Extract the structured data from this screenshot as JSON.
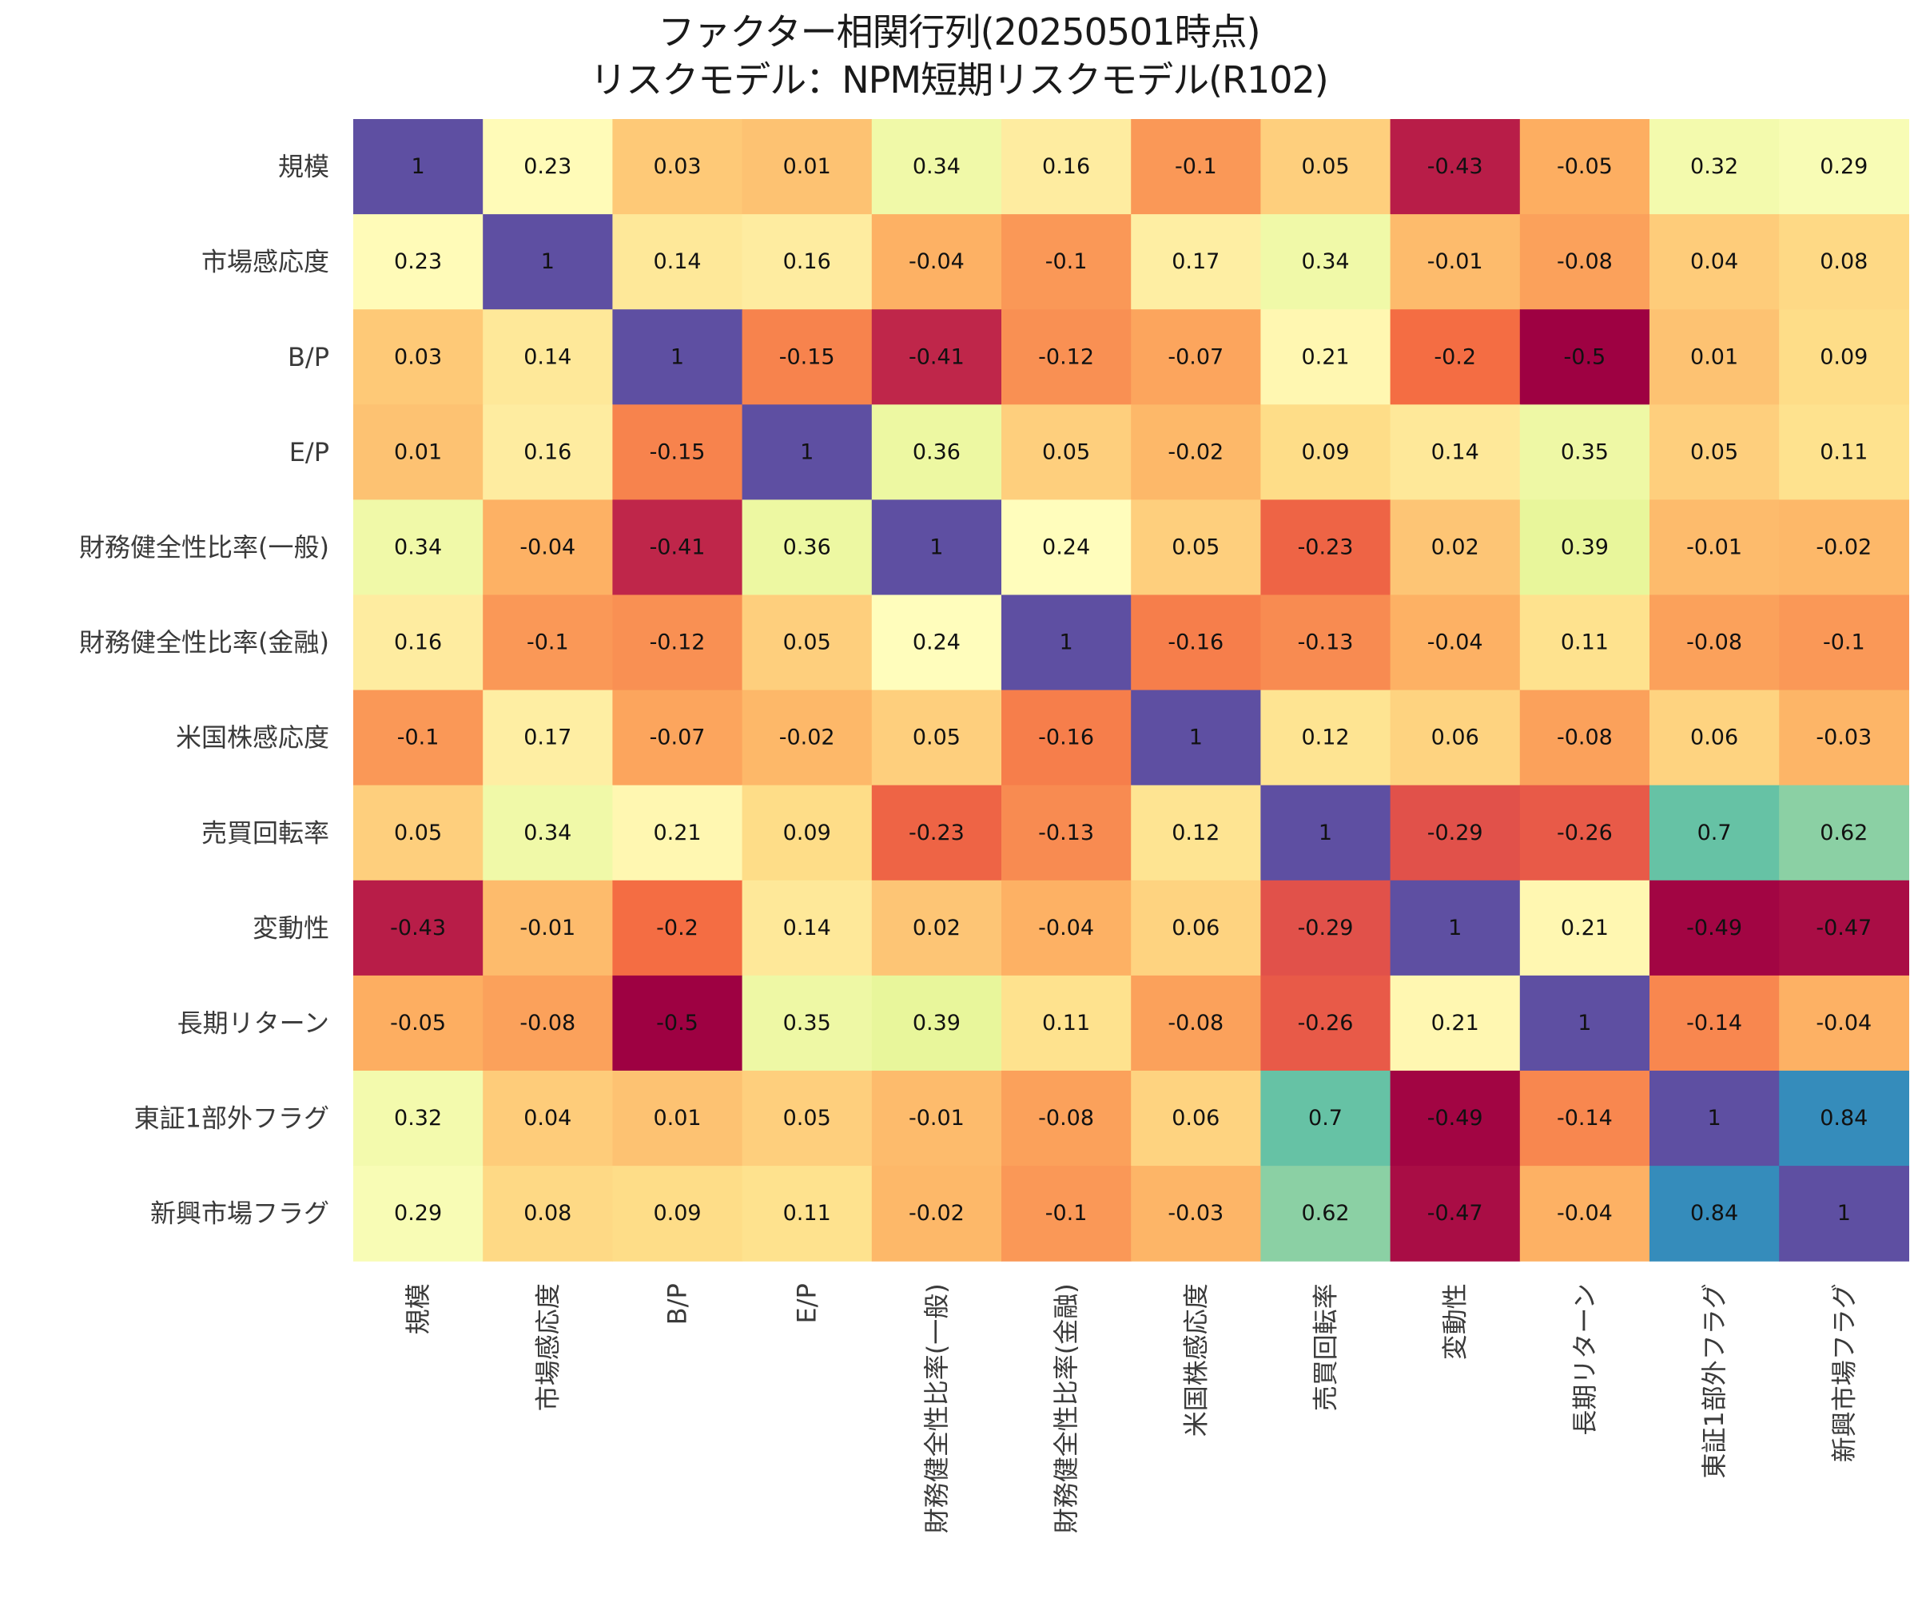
{
  "chart_data": {
    "type": "heatmap",
    "title": "ファクター相関行列(20250501時点)",
    "subtitle": "リスクモデル：NPM短期リスクモデル(R102)",
    "row_labels": [
      "規模",
      "市場感応度",
      "B/P",
      "E/P",
      "財務健全性比率(一般)",
      "財務健全性比率(金融)",
      "米国株感応度",
      "売買回転率",
      "変動性",
      "長期リターン",
      "東証1部外フラグ",
      "新興市場フラグ"
    ],
    "col_labels": [
      "規模",
      "市場感応度",
      "B/P",
      "E/P",
      "財務健全性比率(一般)",
      "財務健全性比率(金融)",
      "米国株感応度",
      "売買回転率",
      "変動性",
      "長期リターン",
      "東証1部外フラグ",
      "新興市場フラグ"
    ],
    "values": [
      [
        1,
        0.23,
        0.03,
        0.01,
        0.34,
        0.16,
        -0.1,
        0.05,
        -0.43,
        -0.05,
        0.32,
        0.29
      ],
      [
        0.23,
        1,
        0.14,
        0.16,
        -0.04,
        -0.1,
        0.17,
        0.34,
        -0.01,
        -0.08,
        0.04,
        0.08
      ],
      [
        0.03,
        0.14,
        1,
        -0.15,
        -0.41,
        -0.12,
        -0.07,
        0.21,
        -0.2,
        -0.5,
        0.01,
        0.09
      ],
      [
        0.01,
        0.16,
        -0.15,
        1,
        0.36,
        0.05,
        -0.02,
        0.09,
        0.14,
        0.35,
        0.05,
        0.11
      ],
      [
        0.34,
        -0.04,
        -0.41,
        0.36,
        1,
        0.24,
        0.05,
        -0.23,
        0.02,
        0.39,
        -0.01,
        -0.02
      ],
      [
        0.16,
        -0.1,
        -0.12,
        0.05,
        0.24,
        1,
        -0.16,
        -0.13,
        -0.04,
        0.11,
        -0.08,
        -0.1
      ],
      [
        -0.1,
        0.17,
        -0.07,
        -0.02,
        0.05,
        -0.16,
        1,
        0.12,
        0.06,
        -0.08,
        0.06,
        -0.03
      ],
      [
        0.05,
        0.34,
        0.21,
        0.09,
        -0.23,
        -0.13,
        0.12,
        1,
        -0.29,
        -0.26,
        0.7,
        0.62
      ],
      [
        -0.43,
        -0.01,
        -0.2,
        0.14,
        0.02,
        -0.04,
        0.06,
        -0.29,
        1,
        0.21,
        -0.49,
        -0.47
      ],
      [
        -0.05,
        -0.08,
        -0.5,
        0.35,
        0.39,
        0.11,
        -0.08,
        -0.26,
        0.21,
        1,
        -0.14,
        -0.04
      ],
      [
        0.32,
        0.04,
        0.01,
        0.05,
        -0.01,
        -0.08,
        0.06,
        0.7,
        -0.49,
        -0.14,
        1,
        0.84
      ],
      [
        0.29,
        0.08,
        0.09,
        0.11,
        -0.02,
        -0.1,
        -0.03,
        0.62,
        -0.47,
        -0.04,
        0.84,
        1
      ]
    ],
    "value_range": [
      -0.5,
      1
    ],
    "colormap": "Spectral_r",
    "colorbar": false,
    "annotations": true
  }
}
